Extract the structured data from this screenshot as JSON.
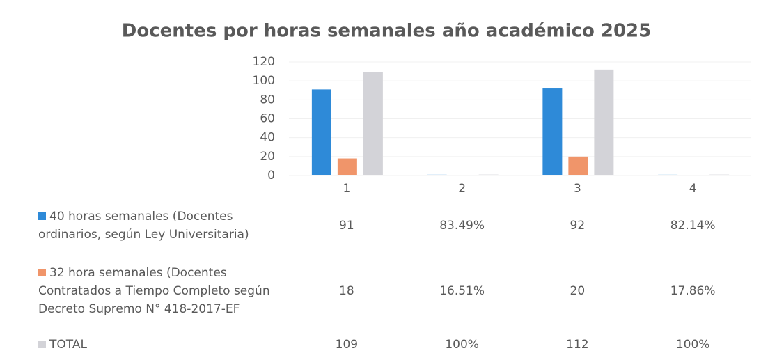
{
  "chart_data": {
    "type": "bar",
    "title": "Docentes por horas semanales año académico 2025",
    "categories": [
      "1",
      "2",
      "3",
      "4"
    ],
    "series": [
      {
        "name": "40 horas semanales (Docentes ordinarios, según Ley Universitaria)",
        "color": "#2e8ad8",
        "values": [
          91,
          0.8349,
          92,
          0.8214
        ],
        "value_labels": [
          "91",
          "83.49%",
          "92",
          "82.14%"
        ]
      },
      {
        "name": "32 hora semanales (Docentes Contratados a Tiempo Completo según Decreto Supremo N° 418-2017-EF",
        "color": "#f0956a",
        "values": [
          18,
          0.1651,
          20,
          0.1786
        ],
        "value_labels": [
          "18",
          "16.51%",
          "20",
          "17.86%"
        ]
      },
      {
        "name": "TOTAL",
        "color": "#d3d3d8",
        "values": [
          109,
          1,
          112,
          1
        ],
        "value_labels": [
          "109",
          "100%",
          "112",
          "100%"
        ]
      }
    ],
    "ylim": [
      0,
      120
    ],
    "yticks": [
      0,
      20,
      40,
      60,
      80,
      100,
      120
    ],
    "grid": true
  }
}
